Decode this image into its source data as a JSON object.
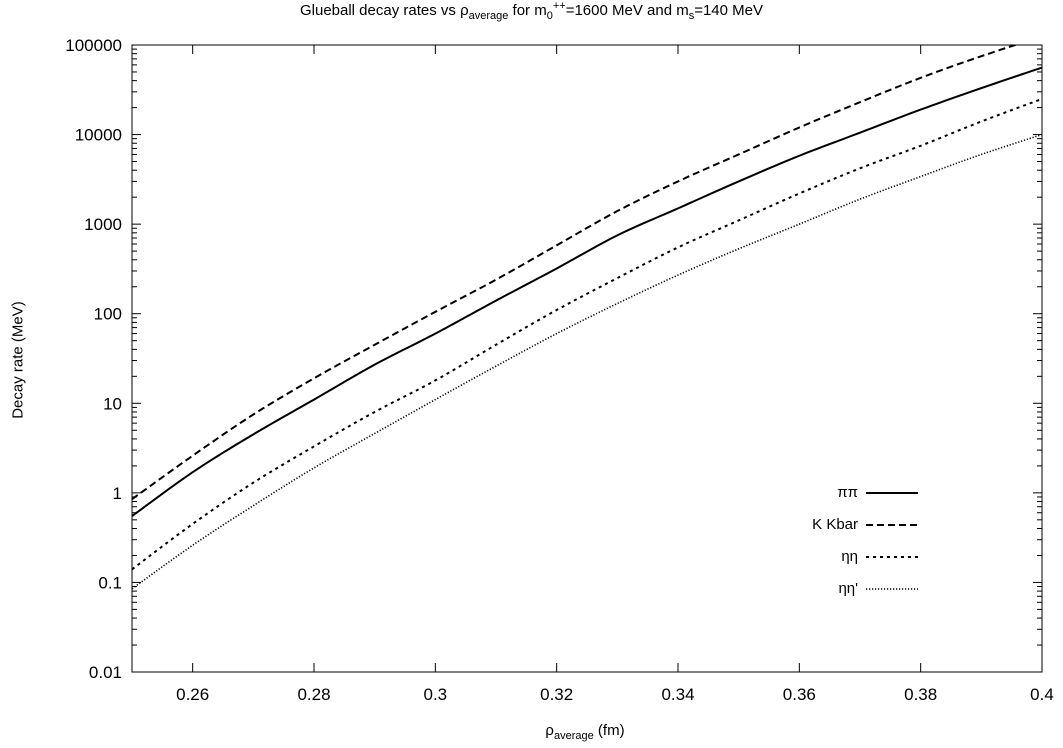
{
  "chart_data": {
    "type": "line",
    "title": {
      "pre": "Glueball decay rates vs ρ",
      "sub1": "average",
      "mid": " for m",
      "sub2": "0",
      "sup": "++",
      "post": "=1600 MeV and m",
      "sub3": "s",
      "end": "=140 MeV"
    },
    "xlabel": {
      "base": "ρ",
      "sub": "average",
      "unit": " (fm)"
    },
    "ylabel": "Decay rate (MeV)",
    "xlim": [
      0.25,
      0.4
    ],
    "ylim": [
      0.01,
      100000
    ],
    "yscale": "log",
    "x_ticks": [
      "0.26",
      "0.28",
      "0.3",
      "0.32",
      "0.34",
      "0.36",
      "0.38",
      "0.4"
    ],
    "y_ticks": [
      "0.01",
      "0.1",
      "1",
      "10",
      "100",
      "1000",
      "10000",
      "100000"
    ],
    "grid": false,
    "legend_position": "bottom-right",
    "series": [
      {
        "name": "ππ",
        "dash": "solid",
        "x": [
          0.25,
          0.26,
          0.27,
          0.28,
          0.29,
          0.3,
          0.31,
          0.32,
          0.33,
          0.34,
          0.35,
          0.36,
          0.37,
          0.38,
          0.39,
          0.4
        ],
        "y": [
          0.55,
          1.7,
          4.5,
          11,
          27,
          60,
          140,
          320,
          750,
          1500,
          3000,
          5800,
          10500,
          19000,
          33000,
          56000
        ]
      },
      {
        "name": "K Kbar",
        "dash": "dashed",
        "x": [
          0.25,
          0.26,
          0.27,
          0.28,
          0.29,
          0.3,
          0.31,
          0.32,
          0.33,
          0.34,
          0.35,
          0.36,
          0.37,
          0.38,
          0.39,
          0.4
        ],
        "y": [
          0.85,
          2.6,
          7.5,
          19,
          45,
          105,
          240,
          580,
          1400,
          3000,
          6000,
          12000,
          23000,
          43000,
          75000,
          125000
        ]
      },
      {
        "name": "ηη",
        "dash": "dotted",
        "x": [
          0.25,
          0.26,
          0.27,
          0.28,
          0.29,
          0.3,
          0.31,
          0.32,
          0.33,
          0.34,
          0.35,
          0.36,
          0.37,
          0.38,
          0.39,
          0.4
        ],
        "y": [
          0.14,
          0.45,
          1.3,
          3.3,
          8,
          18,
          45,
          110,
          250,
          550,
          1100,
          2200,
          4200,
          7500,
          14000,
          25000
        ]
      },
      {
        "name": "ηη'",
        "dash": "fine-dotted",
        "x": [
          0.25,
          0.26,
          0.27,
          0.28,
          0.29,
          0.3,
          0.31,
          0.32,
          0.33,
          0.34,
          0.35,
          0.36,
          0.37,
          0.38,
          0.39,
          0.4
        ],
        "y": [
          0.085,
          0.26,
          0.72,
          1.9,
          4.6,
          11,
          26,
          60,
          130,
          270,
          530,
          1000,
          1900,
          3400,
          6000,
          10000
        ]
      }
    ]
  }
}
